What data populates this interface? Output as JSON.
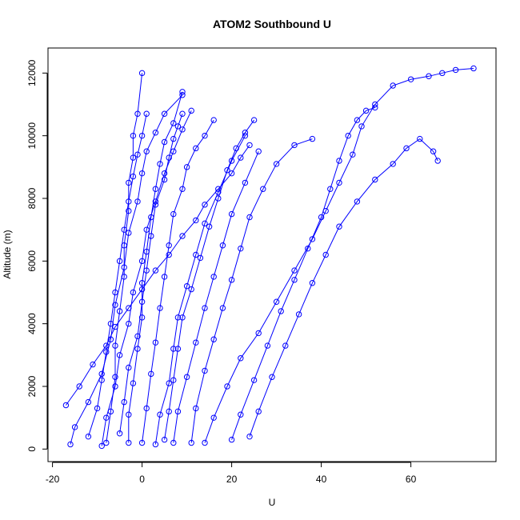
{
  "chart_data": {
    "type": "line",
    "title": "ATOM2 Southbound U",
    "xlabel": "U",
    "ylabel": "Altitude (m)",
    "xlim": [
      -21,
      79
    ],
    "ylim": [
      -400,
      12800
    ],
    "xticks": [
      "-20",
      "0",
      "20",
      "40",
      "60"
    ],
    "yticks": [
      "0",
      "2000",
      "4000",
      "6000",
      "8000",
      "10000",
      "12000"
    ],
    "grid": false,
    "marker": "open-circle",
    "series_color": "#0000ff",
    "series": [
      {
        "x": [
          -16,
          -15,
          -12,
          -9,
          -7,
          -6,
          -4,
          -3,
          -1,
          0,
          1,
          3,
          5,
          9
        ],
        "y": [
          150,
          700,
          1500,
          2400,
          3500,
          4600,
          5800,
          6900,
          7900,
          8800,
          9500,
          10100,
          10700,
          11300
        ]
      },
      {
        "x": [
          -8,
          -7,
          -6,
          -6,
          -5,
          -4,
          -4,
          -3,
          -3,
          -2,
          -2,
          -1,
          0
        ],
        "y": [
          200,
          1200,
          2300,
          3300,
          4400,
          5500,
          6500,
          7600,
          8500,
          9300,
          10000,
          10700,
          12000
        ]
      },
      {
        "x": [
          -3,
          -3,
          -2,
          -1,
          0,
          0,
          1,
          2,
          3,
          4,
          5,
          7,
          9
        ],
        "y": [
          200,
          1100,
          2100,
          3200,
          4200,
          5300,
          6300,
          7400,
          8300,
          9100,
          9800,
          10400,
          11400
        ]
      },
      {
        "x": [
          0,
          1,
          2,
          3,
          4,
          5,
          6,
          7,
          9,
          10,
          12,
          14,
          16
        ],
        "y": [
          200,
          1300,
          2400,
          3400,
          4500,
          5500,
          6500,
          7500,
          8300,
          9000,
          9600,
          10000,
          10500
        ]
      },
      {
        "x": [
          3,
          4,
          6,
          7,
          8,
          10,
          12,
          14,
          17,
          20,
          23
        ],
        "y": [
          150,
          1100,
          2100,
          3200,
          4200,
          5200,
          6200,
          7200,
          8200,
          9200,
          10000
        ]
      },
      {
        "x": [
          7,
          8,
          10,
          12,
          14,
          16,
          18,
          20,
          23,
          26
        ],
        "y": [
          200,
          1200,
          2300,
          3400,
          4500,
          5500,
          6500,
          7500,
          8500,
          9500
        ]
      },
      {
        "x": [
          11,
          12,
          14,
          16,
          18,
          20,
          22,
          24,
          27,
          30,
          34,
          38
        ],
        "y": [
          200,
          1300,
          2500,
          3500,
          4500,
          5400,
          6400,
          7400,
          8300,
          9100,
          9700,
          9900
        ]
      },
      {
        "x": [
          14,
          16,
          19,
          22,
          26,
          30,
          34,
          38,
          41,
          44,
          47,
          49,
          52,
          56,
          60,
          64,
          67,
          70,
          74
        ],
        "y": [
          200,
          1000,
          2000,
          2900,
          3700,
          4700,
          5700,
          6700,
          7600,
          8500,
          9400,
          10300,
          11000,
          11600,
          11800,
          11900,
          12000,
          12100,
          12150
        ]
      },
      {
        "x": [
          20,
          22,
          25,
          28,
          31,
          34,
          37,
          40,
          42,
          44,
          46,
          48,
          50,
          52
        ],
        "y": [
          300,
          1100,
          2200,
          3300,
          4400,
          5400,
          6400,
          7400,
          8300,
          9200,
          10000,
          10500,
          10800,
          10900
        ]
      },
      {
        "x": [
          24,
          26,
          29,
          32,
          35,
          38,
          41,
          44,
          48,
          52,
          56,
          59,
          62,
          65,
          66
        ],
        "y": [
          400,
          1200,
          2300,
          3300,
          4300,
          5300,
          6200,
          7100,
          7900,
          8600,
          9100,
          9600,
          9900,
          9500,
          9200
        ]
      },
      {
        "x": [
          -12,
          -10,
          -9,
          -8,
          -7,
          -6,
          -5,
          -4,
          -3,
          -2,
          -1,
          0,
          1
        ],
        "y": [
          400,
          1300,
          2200,
          3100,
          4000,
          5000,
          6000,
          7000,
          7900,
          8700,
          9400,
          10000,
          10700
        ]
      },
      {
        "x": [
          -5,
          -4,
          -3,
          -1,
          0,
          1,
          2,
          3,
          5,
          6,
          7,
          8,
          9
        ],
        "y": [
          500,
          1500,
          2600,
          3600,
          4700,
          5700,
          6800,
          7800,
          8600,
          9300,
          9900,
          10300,
          10700
        ]
      },
      {
        "x": [
          5,
          6,
          7,
          8,
          9,
          11,
          13,
          15,
          17,
          19,
          21,
          23,
          25
        ],
        "y": [
          300,
          1200,
          2200,
          3200,
          4200,
          5100,
          6100,
          7100,
          8000,
          8900,
          9600,
          10100,
          10500
        ]
      },
      {
        "x": [
          -9,
          -8,
          -6,
          -5,
          -3,
          -2,
          0,
          1,
          3,
          5,
          7,
          9,
          11
        ],
        "y": [
          100,
          1000,
          2000,
          3000,
          4000,
          5000,
          6000,
          7000,
          7900,
          8800,
          9500,
          10200,
          10800
        ]
      },
      {
        "x": [
          -17,
          -14,
          -11,
          -8,
          -6,
          -3,
          0,
          3,
          6,
          9,
          12,
          14,
          17,
          20,
          22,
          24
        ],
        "y": [
          1400,
          2000,
          2700,
          3300,
          3900,
          4500,
          5100,
          5700,
          6200,
          6800,
          7300,
          7800,
          8300,
          8800,
          9300,
          9700
        ]
      }
    ]
  }
}
